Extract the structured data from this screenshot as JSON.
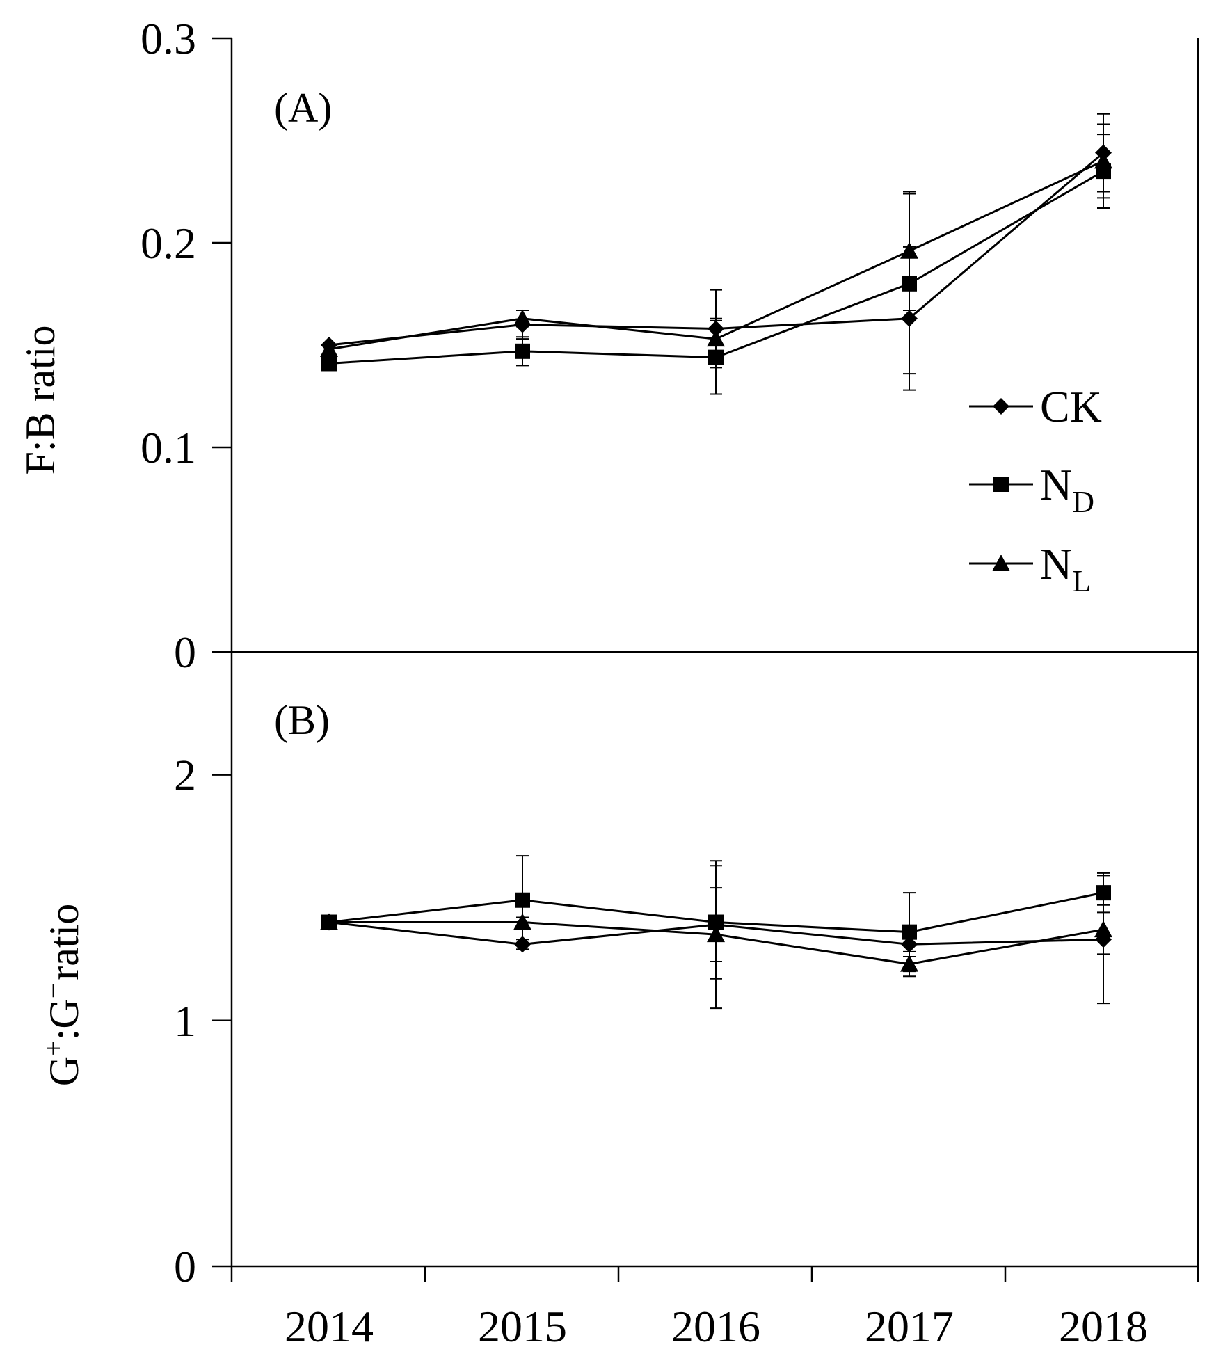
{
  "chart_data": [
    {
      "panel_label": "(A)",
      "type": "line",
      "ylabel": "F:B ratio",
      "ylim": [
        0,
        0.3
      ],
      "yticks": [
        "0",
        "0.1",
        "0.2",
        "0.3"
      ],
      "grid": false,
      "x": [
        "2014",
        "2015",
        "2016",
        "2017",
        "2018"
      ],
      "series": [
        {
          "name": "CK",
          "marker": "diamond",
          "values": [
            0.15,
            0.16,
            0.158,
            0.163,
            0.244
          ],
          "errors": [
            0,
            0.007,
            0.019,
            0.035,
            0.019
          ]
        },
        {
          "name": "N",
          "sub": "D",
          "marker": "square",
          "values": [
            0.141,
            0.147,
            0.144,
            0.18,
            0.235
          ],
          "errors": [
            0,
            0.007,
            0.018,
            0.044,
            0.018
          ]
        },
        {
          "name": "N",
          "sub": "L",
          "marker": "triangle",
          "values": [
            0.148,
            0.163,
            0.153,
            0.196,
            0.24
          ],
          "errors": [
            0,
            0.004,
            0.01,
            0.029,
            0.018
          ]
        }
      ],
      "legend": "right"
    },
    {
      "panel_label": "(B)",
      "type": "line",
      "ylabel_parts": [
        "G",
        "+",
        ":G",
        "−",
        "ratio"
      ],
      "ylim": [
        0,
        2.5
      ],
      "yticks": [
        "0",
        "1",
        "2"
      ],
      "grid": false,
      "x": [
        "2014",
        "2015",
        "2016",
        "2017",
        "2018"
      ],
      "series": [
        {
          "name": "CK",
          "marker": "diamond",
          "values": [
            1.4,
            1.31,
            1.39,
            1.31,
            1.33
          ],
          "errors": [
            0,
            0.02,
            0.15,
            0.05,
            0.26
          ]
        },
        {
          "name": "N",
          "sub": "D",
          "marker": "square",
          "values": [
            1.4,
            1.49,
            1.4,
            1.36,
            1.52
          ],
          "errors": [
            0,
            0.18,
            0.23,
            0.16,
            0.08
          ]
        },
        {
          "name": "N",
          "sub": "L",
          "marker": "triangle",
          "values": [
            1.4,
            1.4,
            1.35,
            1.23,
            1.37
          ],
          "errors": [
            0,
            0.02,
            0.3,
            0.05,
            0.1
          ]
        }
      ]
    }
  ]
}
